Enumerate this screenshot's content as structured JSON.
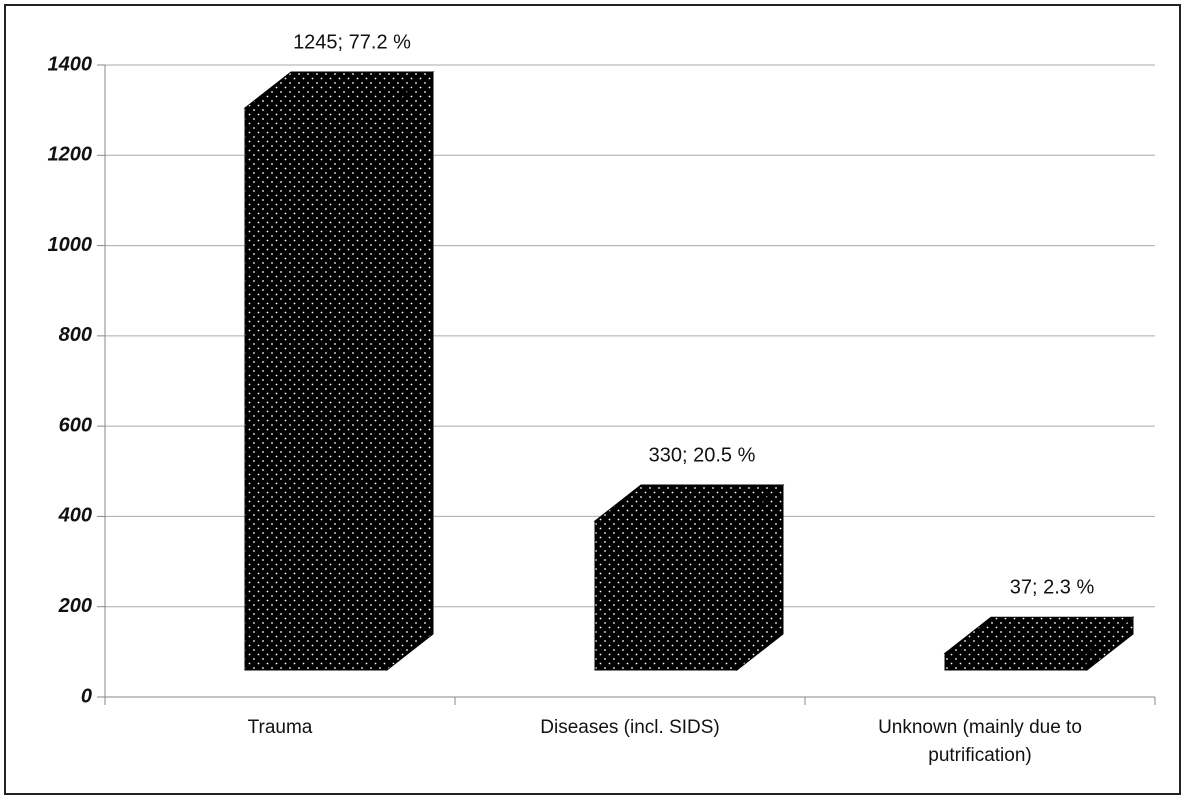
{
  "chart_data": {
    "type": "bar3d",
    "categories": [
      "Trauma",
      "Diseases (incl. SIDS)",
      "Unknown (mainly due to putrification)"
    ],
    "values": [
      1245,
      330,
      37
    ],
    "value_labels": [
      "1245; 77.2 %",
      "330; 20.5 %",
      "37; 2.3 %"
    ],
    "color": "#000000",
    "ylim": [
      0,
      1400
    ],
    "yticks": [
      0,
      200,
      400,
      600,
      800,
      1000,
      1200,
      1400
    ],
    "grid": true
  }
}
